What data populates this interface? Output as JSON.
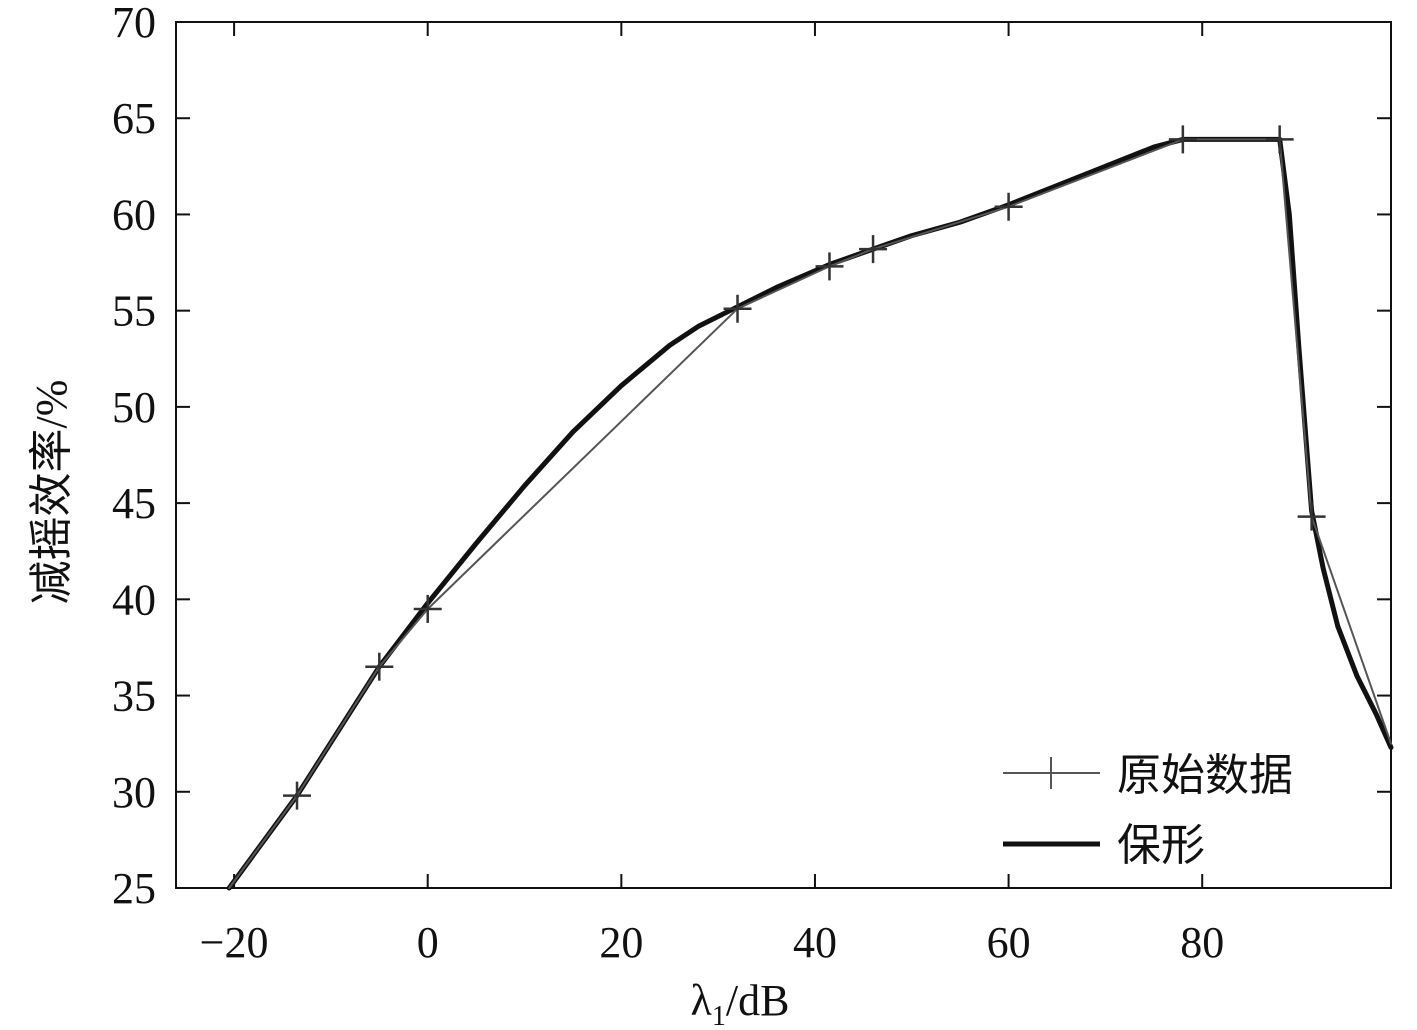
{
  "chart_data": {
    "type": "line",
    "xlabel": "λ1/dB",
    "ylabel": "减摇效率/%",
    "xlim": [
      -26,
      99.5
    ],
    "ylim": [
      25,
      70
    ],
    "xticks": [
      -20,
      0,
      20,
      40,
      60,
      80
    ],
    "xtick_labels": [
      "−20",
      "0",
      "20",
      "40",
      "60",
      "80"
    ],
    "yticks": [
      25,
      30,
      35,
      40,
      45,
      50,
      55,
      60,
      65,
      70
    ],
    "grid": false,
    "legend_position": "bottom-right",
    "series": [
      {
        "name": "原始数据",
        "style": "thin-with-plus-markers",
        "color": "#555555",
        "x": [
          -20.5,
          -13.5,
          -5,
          0,
          32,
          41.5,
          46,
          60,
          78,
          88,
          91.3,
          99.5
        ],
        "y": [
          24.8,
          29.8,
          36.5,
          39.5,
          55.1,
          57.3,
          58.2,
          60.4,
          63.9,
          63.9,
          44.3,
          32.5
        ],
        "markers_x": [
          -13.5,
          -5,
          0,
          32,
          41.5,
          46,
          60,
          78,
          88,
          91.3
        ],
        "markers_y": [
          29.8,
          36.5,
          39.5,
          55.1,
          57.3,
          58.2,
          60.4,
          63.9,
          63.9,
          44.3
        ]
      },
      {
        "name": "保形",
        "style": "thick",
        "color": "#111111",
        "x": [
          -20.5,
          -13.5,
          -5,
          0,
          5,
          10,
          15,
          20,
          25,
          28,
          32,
          36,
          41.5,
          46,
          50,
          55,
          60,
          65,
          70,
          75,
          78,
          82,
          88,
          89,
          90,
          91.3,
          92.5,
          94,
          96,
          98,
          99.5
        ],
        "y": [
          24.8,
          29.8,
          36.5,
          39.8,
          42.9,
          45.9,
          48.7,
          51.1,
          53.2,
          54.2,
          55.2,
          56.2,
          57.4,
          58.2,
          58.9,
          59.6,
          60.5,
          61.5,
          62.5,
          63.5,
          63.9,
          63.9,
          63.9,
          60,
          53,
          44.6,
          41.6,
          38.6,
          36,
          34,
          32.3
        ]
      }
    ]
  }
}
